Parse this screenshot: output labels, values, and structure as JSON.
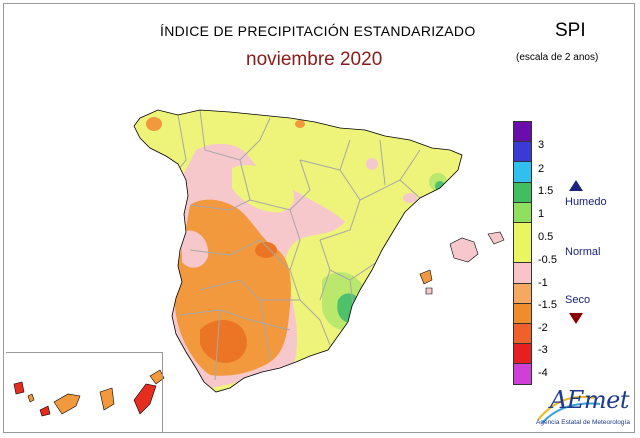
{
  "header": {
    "title": "ÍNDICE DE PRECIPITACIÓN ESTANDARIZADO",
    "subtitle": "noviembre 2020",
    "index_name": "SPI",
    "scale_note": "(escala de 2 anos)"
  },
  "legend": {
    "ticks": [
      "3",
      "2",
      "1.5",
      "1",
      "0.5",
      "-0.5",
      "-1",
      "-1.5",
      "-2",
      "-3",
      "-4"
    ],
    "colors": [
      "#6a0dad",
      "#3a3ad6",
      "#2fc0ef",
      "#3fbf5f",
      "#90e060",
      "#eaf660",
      "#f8c4c8",
      "#f4a860",
      "#f08c2c",
      "#f0602a",
      "#e62020",
      "#d040d8"
    ],
    "categories": {
      "humid": "Humedo",
      "normal": "Normal",
      "dry": "Seco"
    }
  },
  "map": {
    "region": "Spain",
    "colors": {
      "yellow": "#eef37a",
      "pink": "#f6c8cc",
      "orange": "#f2993e",
      "dark_orange": "#eb7524",
      "light_green": "#b9e86c",
      "green": "#4ec26a",
      "cyan": "#4dc3ea",
      "red": "#e52d1d",
      "sea": "#ffffff",
      "border": "#a7a7a7",
      "coast": "#000000"
    }
  },
  "logo": {
    "name": "AEmet",
    "tagline": "Agencia Estatal de Meteorología"
  }
}
